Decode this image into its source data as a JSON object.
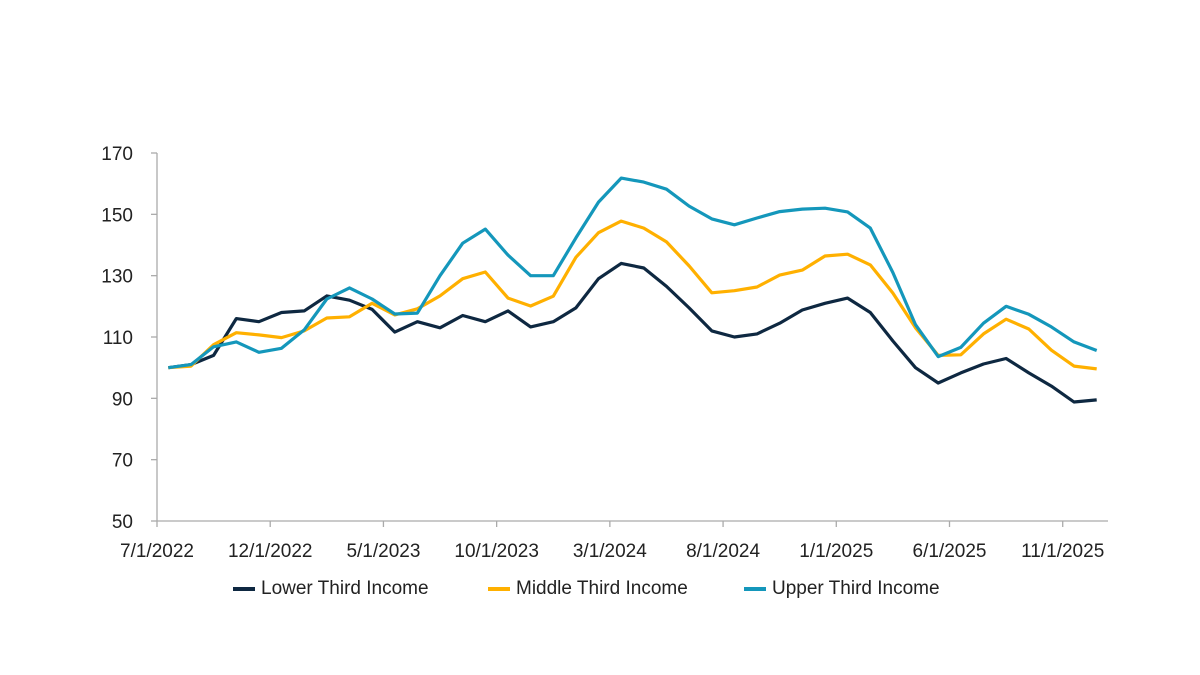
{
  "chart_data": {
    "type": "line",
    "title": "",
    "xlabel": "",
    "ylabel": "",
    "ylim": [
      50,
      170
    ],
    "yticks": [
      50,
      70,
      90,
      110,
      130,
      150,
      170
    ],
    "xtick_labels": [
      "7/1/2022",
      "12/1/2022",
      "5/1/2023",
      "10/1/2023",
      "3/1/2024",
      "8/1/2024",
      "1/1/2025",
      "6/1/2025",
      "11/1/2025"
    ],
    "grid": false,
    "legend": "bottom",
    "x": [
      "7/1/2022",
      "8/1/2022",
      "9/1/2022",
      "10/1/2022",
      "11/1/2022",
      "12/1/2022",
      "1/1/2023",
      "2/1/2023",
      "3/1/2023",
      "4/1/2023",
      "5/1/2023",
      "6/1/2023",
      "7/1/2023",
      "8/1/2023",
      "9/1/2023",
      "10/1/2023",
      "11/1/2023",
      "12/1/2023",
      "1/1/2024",
      "2/1/2024",
      "3/1/2024",
      "4/1/2024",
      "5/1/2024",
      "6/1/2024",
      "7/1/2024",
      "8/1/2024",
      "9/1/2024",
      "10/1/2024",
      "11/1/2024",
      "12/1/2024",
      "1/1/2025",
      "2/1/2025",
      "3/1/2025",
      "4/1/2025",
      "5/1/2025",
      "6/1/2025",
      "7/1/2025",
      "8/1/2025",
      "9/1/2025",
      "10/1/2025",
      "11/1/2025",
      "12/1/2025"
    ],
    "series": [
      {
        "name": "Lower Third Income",
        "color": "#0E2841",
        "values": [
          100,
          101,
          104,
          116,
          115,
          118,
          118.5,
          123.4,
          122,
          119,
          111.6,
          115,
          113,
          117,
          115,
          118.5,
          113.3,
          115,
          119.5,
          129,
          134,
          132.5,
          126.5,
          119.5,
          112,
          110,
          111,
          114.5,
          118.8,
          121,
          122.7,
          118,
          108.7,
          100,
          95,
          98.3,
          101.2,
          103,
          98.3,
          94,
          88.8,
          89.5
        ]
      },
      {
        "name": "Middle Third Income",
        "color": "#FFB000",
        "values": [
          100,
          100.5,
          107.5,
          111.4,
          110.7,
          109.8,
          112,
          116.2,
          116.6,
          121,
          117.2,
          119.2,
          123.4,
          129,
          131.2,
          122.7,
          120.1,
          123.3,
          136,
          144,
          147.8,
          145.5,
          141,
          133.2,
          124.4,
          125.1,
          126.3,
          130.2,
          131.8,
          136.4,
          137,
          133.5,
          124.3,
          113,
          104,
          104.2,
          111,
          115.8,
          112.6,
          105.7,
          100.5,
          99.6
        ]
      },
      {
        "name": "Upper Third Income",
        "color": "#1497BB",
        "values": [
          100,
          101,
          106.8,
          108.4,
          105,
          106.3,
          112.3,
          122.4,
          126,
          122.4,
          117.5,
          117.8,
          130,
          140.6,
          145.2,
          136.7,
          130,
          130,
          142.3,
          154,
          161.8,
          160.5,
          158.2,
          152.7,
          148.5,
          146.6,
          148.8,
          150.9,
          151.7,
          152,
          150.8,
          145.5,
          131,
          114,
          103.6,
          106.6,
          114.5,
          120,
          117.4,
          113.3,
          108.4,
          105.6
        ]
      }
    ]
  }
}
